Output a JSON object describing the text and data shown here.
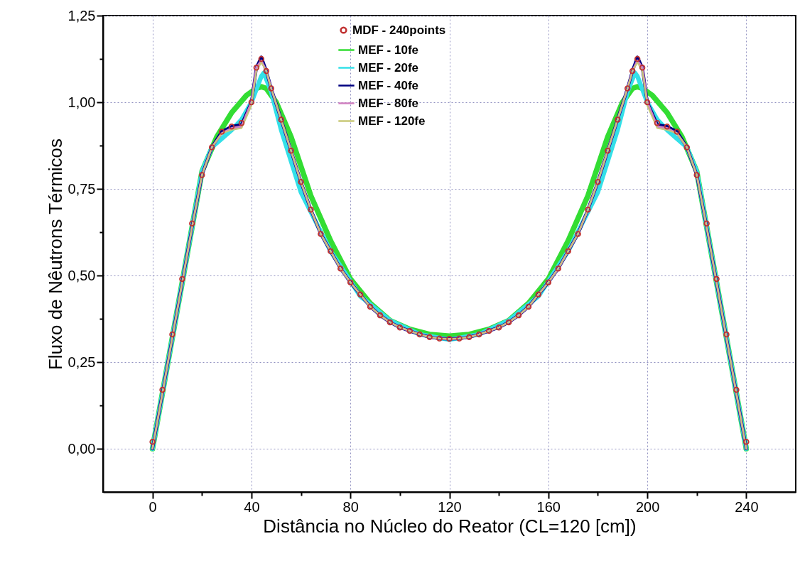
{
  "chart_data": {
    "type": "line",
    "xlabel": "Distância no Núcleo do Reator (CL=120 [cm])",
    "ylabel": "Fluxo de Nêutrons Térmicos",
    "xlim": [
      -20,
      260
    ],
    "ylim": [
      -0.125,
      1.25
    ],
    "xticks": [
      0,
      {
        "value": 20,
        "label": null
      },
      40,
      {
        "value": 60,
        "label": null
      },
      80,
      {
        "value": 100,
        "label": null
      },
      120,
      {
        "value": 140,
        "label": null
      },
      160,
      {
        "value": 180,
        "label": null
      },
      200,
      {
        "value": 220,
        "label": null
      },
      240
    ],
    "yticks": [
      {
        "value": 0,
        "label": "0,00"
      },
      {
        "value": 0.125,
        "label": null
      },
      {
        "value": 0.25,
        "label": "0,25"
      },
      {
        "value": 0.375,
        "label": null
      },
      {
        "value": 0.5,
        "label": "0,50"
      },
      {
        "value": 0.625,
        "label": null
      },
      {
        "value": 0.75,
        "label": "0,75"
      },
      {
        "value": 0.875,
        "label": null
      },
      {
        "value": 1,
        "label": "1,00"
      },
      {
        "value": 1.125,
        "label": null
      },
      {
        "value": 1.25,
        "label": "1,25"
      }
    ],
    "grid": true,
    "legend": "top",
    "line_style": "solid",
    "series": [
      {
        "name": "MDF - 240points",
        "type": "scatter",
        "color": "#c03030",
        "x": [
          0,
          4,
          8,
          12,
          16,
          20,
          24,
          28,
          32,
          36,
          40,
          42,
          44,
          46,
          48,
          52,
          56,
          60,
          64,
          68,
          72,
          76,
          80,
          84,
          88,
          92,
          96,
          100,
          104,
          108,
          112,
          116,
          120,
          124,
          128,
          132,
          136,
          140,
          144,
          148,
          152,
          156,
          160,
          164,
          168,
          172,
          176,
          180,
          184,
          188,
          192,
          194,
          196,
          198,
          200,
          204,
          208,
          212,
          216,
          220,
          224,
          228,
          232,
          236,
          240
        ],
        "values": [
          0.02,
          0.17,
          0.33,
          0.49,
          0.65,
          0.79,
          0.87,
          0.915,
          0.93,
          0.94,
          1.0,
          1.1,
          1.125,
          1.09,
          1.04,
          0.95,
          0.86,
          0.77,
          0.69,
          0.62,
          0.57,
          0.52,
          0.48,
          0.445,
          0.41,
          0.385,
          0.365,
          0.35,
          0.34,
          0.33,
          0.322,
          0.318,
          0.317,
          0.318,
          0.322,
          0.33,
          0.34,
          0.35,
          0.365,
          0.385,
          0.41,
          0.445,
          0.48,
          0.52,
          0.57,
          0.62,
          0.69,
          0.77,
          0.86,
          0.95,
          1.04,
          1.09,
          1.125,
          1.1,
          1.0,
          0.94,
          0.93,
          0.915,
          0.87,
          0.79,
          0.65,
          0.49,
          0.33,
          0.17,
          0.02
        ]
      },
      {
        "name": "MEF - 10fe",
        "color": "#33dd33",
        "x": [
          0,
          6,
          12,
          20,
          26,
          32,
          38,
          42,
          44,
          46,
          50,
          56,
          64,
          72,
          80,
          88,
          96,
          104,
          112,
          120,
          128,
          136,
          144,
          152,
          160,
          168,
          176,
          184,
          190,
          194,
          196,
          198,
          202,
          208,
          214,
          220,
          228,
          234,
          240
        ],
        "values": [
          0,
          0.24,
          0.48,
          0.8,
          0.9,
          0.97,
          1.02,
          1.04,
          1.045,
          1.04,
          1.0,
          0.9,
          0.73,
          0.6,
          0.49,
          0.42,
          0.37,
          0.345,
          0.33,
          0.325,
          0.33,
          0.345,
          0.37,
          0.42,
          0.49,
          0.6,
          0.73,
          0.9,
          1.0,
          1.04,
          1.045,
          1.04,
          1.02,
          0.97,
          0.9,
          0.8,
          0.48,
          0.24,
          0
        ]
      },
      {
        "name": "MEF - 20fe",
        "color": "#33e0e8",
        "x": [
          0,
          6,
          12,
          20,
          24,
          28,
          32,
          36,
          40,
          44,
          45,
          48,
          52,
          60,
          72,
          84,
          96,
          108,
          120,
          132,
          144,
          156,
          168,
          180,
          188,
          192,
          195,
          196,
          200,
          204,
          208,
          212,
          216,
          220,
          228,
          234,
          240
        ],
        "values": [
          0,
          0.24,
          0.48,
          0.8,
          0.87,
          0.895,
          0.92,
          0.95,
          1.0,
          1.075,
          1.085,
          1.03,
          0.92,
          0.74,
          0.57,
          0.44,
          0.37,
          0.33,
          0.315,
          0.33,
          0.37,
          0.44,
          0.57,
          0.74,
          0.92,
          1.03,
          1.085,
          1.075,
          1.0,
          0.95,
          0.92,
          0.895,
          0.87,
          0.8,
          0.48,
          0.24,
          0
        ]
      },
      {
        "name": "MEF - 40fe",
        "color": "#000080",
        "x": [
          0,
          4,
          8,
          12,
          16,
          20,
          24,
          28,
          32,
          36,
          40,
          42,
          44,
          46,
          48,
          52,
          56,
          60,
          64,
          68,
          72,
          76,
          80,
          84,
          88,
          92,
          96,
          100,
          104,
          108,
          112,
          116,
          120,
          124,
          128,
          132,
          136,
          140,
          144,
          148,
          152,
          156,
          160,
          164,
          168,
          172,
          176,
          180,
          184,
          188,
          192,
          194,
          196,
          198,
          200,
          204,
          208,
          212,
          216,
          220,
          224,
          228,
          232,
          236,
          240
        ],
        "values": [
          0,
          0.16,
          0.32,
          0.48,
          0.64,
          0.79,
          0.87,
          0.915,
          0.93,
          0.935,
          1.0,
          1.1,
          1.13,
          1.09,
          1.04,
          0.95,
          0.86,
          0.77,
          0.69,
          0.62,
          0.57,
          0.52,
          0.48,
          0.445,
          0.41,
          0.385,
          0.365,
          0.35,
          0.34,
          0.33,
          0.322,
          0.318,
          0.317,
          0.318,
          0.322,
          0.33,
          0.34,
          0.35,
          0.365,
          0.385,
          0.41,
          0.445,
          0.48,
          0.52,
          0.57,
          0.62,
          0.69,
          0.77,
          0.86,
          0.95,
          1.04,
          1.09,
          1.13,
          1.1,
          1.0,
          0.935,
          0.93,
          0.915,
          0.87,
          0.79,
          0.64,
          0.48,
          0.32,
          0.16,
          0
        ]
      },
      {
        "name": "MEF - 80fe",
        "color": "#d080c0",
        "x": [
          0,
          4,
          8,
          12,
          16,
          20,
          24,
          28,
          32,
          36,
          40,
          42,
          44,
          46,
          48,
          52,
          56,
          60,
          64,
          68,
          72,
          76,
          80,
          84,
          88,
          92,
          96,
          100,
          104,
          108,
          112,
          116,
          120,
          124,
          128,
          132,
          136,
          140,
          144,
          148,
          152,
          156,
          160,
          164,
          168,
          172,
          176,
          180,
          184,
          188,
          192,
          194,
          196,
          198,
          200,
          204,
          208,
          212,
          216,
          220,
          224,
          228,
          232,
          236,
          240
        ],
        "values": [
          0,
          0.16,
          0.32,
          0.48,
          0.64,
          0.79,
          0.87,
          0.91,
          0.925,
          0.93,
          1.0,
          1.1,
          1.12,
          1.09,
          1.04,
          0.95,
          0.86,
          0.77,
          0.69,
          0.62,
          0.57,
          0.52,
          0.48,
          0.445,
          0.41,
          0.385,
          0.365,
          0.35,
          0.34,
          0.33,
          0.322,
          0.318,
          0.317,
          0.318,
          0.322,
          0.33,
          0.34,
          0.35,
          0.365,
          0.385,
          0.41,
          0.445,
          0.48,
          0.52,
          0.57,
          0.62,
          0.69,
          0.77,
          0.86,
          0.95,
          1.04,
          1.09,
          1.12,
          1.1,
          1.0,
          0.93,
          0.925,
          0.91,
          0.87,
          0.79,
          0.64,
          0.48,
          0.32,
          0.16,
          0
        ]
      },
      {
        "name": "MEF - 120fe",
        "color": "#c8c878",
        "x": [
          0,
          4,
          8,
          12,
          16,
          20,
          24,
          28,
          32,
          36,
          40,
          42,
          44,
          46,
          48,
          52,
          56,
          60,
          64,
          68,
          72,
          76,
          80,
          84,
          88,
          92,
          96,
          100,
          104,
          108,
          112,
          116,
          120,
          124,
          128,
          132,
          136,
          140,
          144,
          148,
          152,
          156,
          160,
          164,
          168,
          172,
          176,
          180,
          184,
          188,
          192,
          194,
          196,
          198,
          200,
          204,
          208,
          212,
          216,
          220,
          224,
          228,
          232,
          236,
          240
        ],
        "values": [
          0,
          0.16,
          0.32,
          0.48,
          0.64,
          0.79,
          0.87,
          0.91,
          0.92,
          0.925,
          0.99,
          1.09,
          1.115,
          1.09,
          1.04,
          0.95,
          0.86,
          0.77,
          0.69,
          0.62,
          0.57,
          0.52,
          0.48,
          0.445,
          0.41,
          0.385,
          0.365,
          0.35,
          0.34,
          0.33,
          0.322,
          0.318,
          0.317,
          0.318,
          0.322,
          0.33,
          0.34,
          0.35,
          0.365,
          0.385,
          0.41,
          0.445,
          0.48,
          0.52,
          0.57,
          0.62,
          0.69,
          0.77,
          0.86,
          0.95,
          1.04,
          1.09,
          1.115,
          1.09,
          0.99,
          0.925,
          0.92,
          0.91,
          0.87,
          0.79,
          0.64,
          0.48,
          0.32,
          0.16,
          0
        ]
      }
    ]
  }
}
